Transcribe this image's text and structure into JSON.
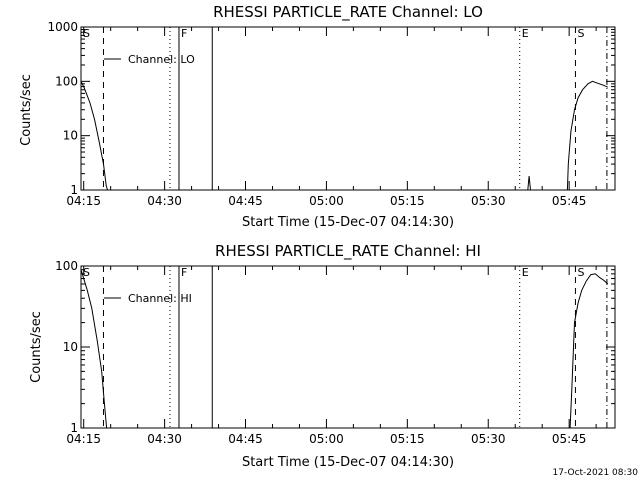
{
  "footer_timestamp": "17-Oct-2021 08:30",
  "chart_data": [
    {
      "type": "line",
      "title": "RHESSI PARTICLE_RATE Channel: LO",
      "xlabel": "Start Time (15-Dec-07 04:14:30)",
      "ylabel": "Counts/sec",
      "xlim": [
        "04:14:30",
        "05:53:30"
      ],
      "ylim": [
        1,
        1000
      ],
      "yscale": "log",
      "x_ticks": [
        "04:15",
        "04:30",
        "04:45",
        "05:00",
        "05:15",
        "05:30",
        "05:45"
      ],
      "y_ticks": [
        "1",
        "10",
        "100",
        "1000"
      ],
      "legend": {
        "label": "Channel: LO",
        "placement": "top-left"
      },
      "grid": false,
      "markers": [
        {
          "label": "S",
          "time": "04:14:30",
          "style": "none"
        },
        {
          "label": "",
          "time": "04:18:40",
          "style": "dashed"
        },
        {
          "label": "",
          "time": "04:31:00",
          "style": "dotted"
        },
        {
          "label": "F",
          "time": "04:32:40",
          "style": "solid"
        },
        {
          "label": "",
          "time": "04:38:50",
          "style": "solid"
        },
        {
          "label": "E",
          "time": "05:35:50",
          "style": "dotted"
        },
        {
          "label": "S",
          "time": "05:46:10",
          "style": "dashed"
        },
        {
          "label": "",
          "time": "05:52:00",
          "style": "dashdot"
        }
      ],
      "series": [
        {
          "segments": [
            [
              [
                "04:14:30",
                100
              ],
              [
                "04:15:00",
                80
              ],
              [
                "04:15:30",
                60
              ],
              [
                "04:16:10",
                40
              ],
              [
                "04:17:00",
                20
              ],
              [
                "04:17:50",
                8
              ],
              [
                "04:18:40",
                3
              ],
              [
                "04:19:10",
                1.2
              ],
              [
                "04:19:25",
                1
              ]
            ],
            [
              [
                "05:37:20",
                1
              ],
              [
                "05:37:35",
                1.8
              ],
              [
                "05:37:50",
                1
              ]
            ],
            [
              [
                "05:44:40",
                1
              ],
              [
                "05:44:50",
                3
              ],
              [
                "05:45:20",
                12
              ],
              [
                "05:46:00",
                30
              ],
              [
                "05:46:40",
                50
              ],
              [
                "05:47:30",
                70
              ],
              [
                "05:48:30",
                90
              ],
              [
                "05:49:20",
                100
              ],
              [
                "05:50:20",
                92
              ],
              [
                "05:51:20",
                85
              ],
              [
                "05:52:10",
                78
              ]
            ]
          ]
        }
      ]
    },
    {
      "type": "line",
      "title": "RHESSI PARTICLE_RATE Channel: HI",
      "xlabel": "Start Time (15-Dec-07 04:14:30)",
      "ylabel": "Counts/sec",
      "xlim": [
        "04:14:30",
        "05:53:30"
      ],
      "ylim": [
        1,
        100
      ],
      "yscale": "log",
      "x_ticks": [
        "04:15",
        "04:30",
        "04:45",
        "05:00",
        "05:15",
        "05:30",
        "05:45"
      ],
      "y_ticks": [
        "1",
        "10",
        "100"
      ],
      "legend": {
        "label": "Channel: HI",
        "placement": "top-left"
      },
      "grid": false,
      "markers": [
        {
          "label": "S",
          "time": "04:14:30",
          "style": "none"
        },
        {
          "label": "",
          "time": "04:18:40",
          "style": "dashed"
        },
        {
          "label": "",
          "time": "04:31:00",
          "style": "dotted"
        },
        {
          "label": "F",
          "time": "04:32:40",
          "style": "solid"
        },
        {
          "label": "",
          "time": "04:38:50",
          "style": "solid"
        },
        {
          "label": "E",
          "time": "05:35:50",
          "style": "dotted"
        },
        {
          "label": "S",
          "time": "05:46:10",
          "style": "dashed"
        },
        {
          "label": "",
          "time": "05:52:00",
          "style": "dashdot"
        }
      ],
      "series": [
        {
          "segments": [
            [
              [
                "04:14:30",
                90
              ],
              [
                "04:15:00",
                70
              ],
              [
                "04:15:40",
                50
              ],
              [
                "04:16:30",
                30
              ],
              [
                "04:17:30",
                12
              ],
              [
                "04:18:20",
                5
              ],
              [
                "04:18:50",
                2
              ],
              [
                "04:19:15",
                1
              ]
            ],
            [
              [
                "05:45:10",
                1
              ],
              [
                "05:45:30",
                3
              ],
              [
                "05:46:00",
                20
              ],
              [
                "05:46:40",
                35
              ],
              [
                "05:47:20",
                50
              ],
              [
                "05:48:10",
                65
              ],
              [
                "05:49:00",
                78
              ],
              [
                "05:49:50",
                80
              ],
              [
                "05:50:40",
                72
              ],
              [
                "05:51:30",
                66
              ],
              [
                "05:52:10",
                60
              ]
            ]
          ]
        }
      ]
    }
  ]
}
